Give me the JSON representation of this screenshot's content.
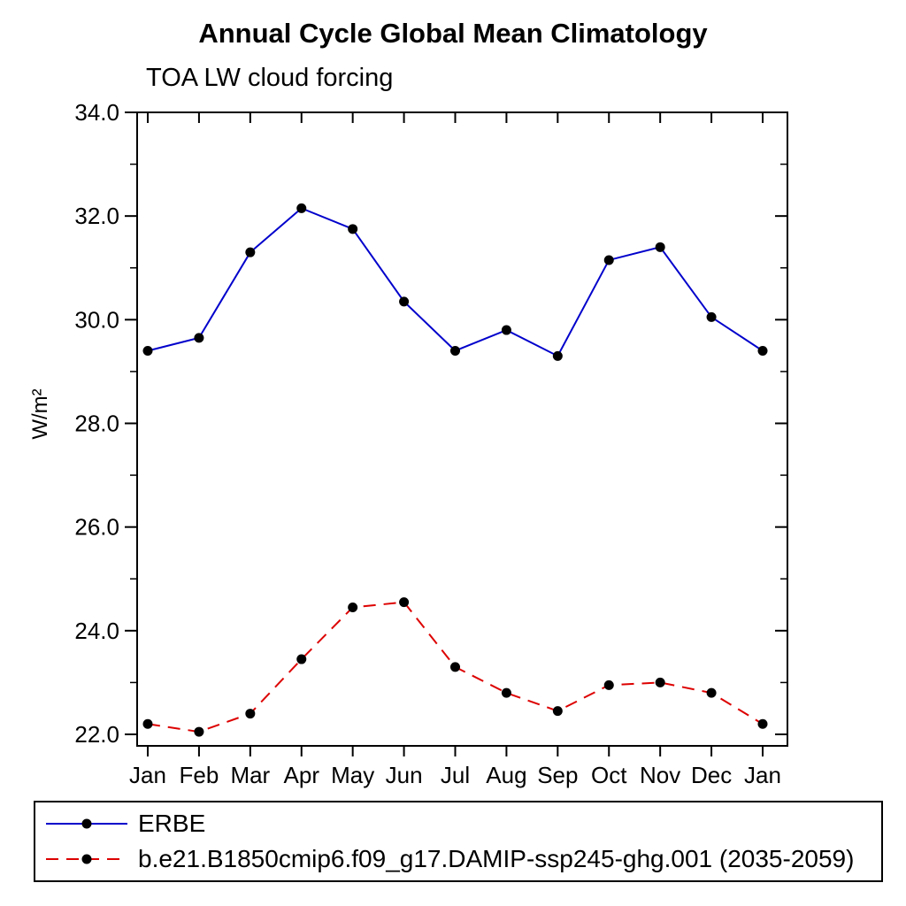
{
  "chart_data": {
    "type": "line",
    "title": "Annual Cycle Global Mean Climatology",
    "subtitle": "TOA LW cloud forcing",
    "ylabel": "W/m²",
    "xlabel": "",
    "grid": false,
    "legend_position": "bottom",
    "categories": [
      "Jan",
      "Feb",
      "Mar",
      "Apr",
      "May",
      "Jun",
      "Jul",
      "Aug",
      "Sep",
      "Oct",
      "Nov",
      "Dec",
      "Jan"
    ],
    "ylim": [
      22.0,
      34.0
    ],
    "ytick_values": [
      22.0,
      24.0,
      26.0,
      28.0,
      30.0,
      32.0,
      34.0
    ],
    "ytick_labels": [
      "22.0",
      "24.0",
      "26.0",
      "28.0",
      "30.0",
      "32.0",
      "34.0"
    ],
    "ytick_minor_interval": 1.0,
    "series": [
      {
        "name": "ERBE",
        "color": "#0000cc",
        "style": "solid",
        "marker": "circle",
        "marker_color": "#000000",
        "values": [
          29.4,
          29.65,
          31.3,
          32.15,
          31.75,
          30.35,
          29.4,
          29.8,
          29.3,
          31.15,
          31.4,
          30.05,
          29.4
        ]
      },
      {
        "name": "b.e21.B1850cmip6.f09_g17.DAMIP-ssp245-ghg.001 (2035-2059)",
        "color": "#dd0000",
        "style": "dashed",
        "marker": "circle",
        "marker_color": "#000000",
        "values": [
          22.2,
          22.05,
          22.4,
          23.45,
          24.45,
          24.55,
          23.3,
          22.8,
          22.45,
          22.95,
          23.0,
          22.8,
          22.2
        ]
      }
    ]
  }
}
